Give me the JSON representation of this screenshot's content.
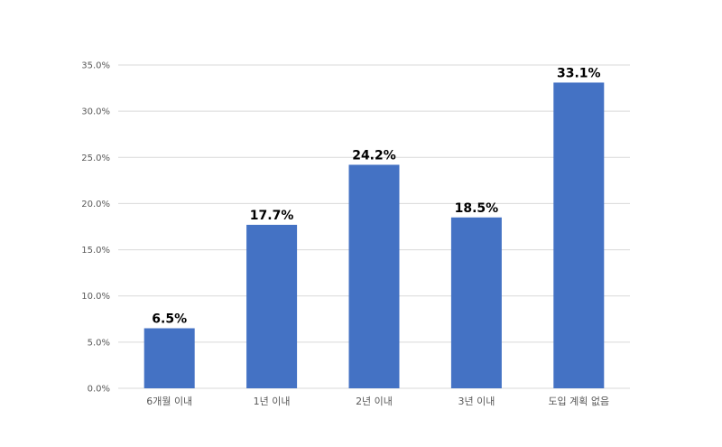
{
  "chart_data": {
    "type": "bar",
    "title": "",
    "xlabel": "",
    "ylabel": "",
    "categories": [
      "6개월 이내",
      "1년 이내",
      "2년 이내",
      "3년 이내",
      "도입 계획 없음"
    ],
    "values": [
      6.5,
      17.7,
      24.2,
      18.5,
      33.1
    ],
    "data_labels": [
      "6.5%",
      "17.7%",
      "24.2%",
      "18.5%",
      "33.1%"
    ],
    "ylim": [
      0,
      35
    ],
    "y_ticks": [
      0,
      5,
      10,
      15,
      20,
      25,
      30,
      35
    ],
    "y_tick_labels": [
      "0.0%",
      "5.0%",
      "10.0%",
      "15.0%",
      "20.0%",
      "25.0%",
      "30.0%",
      "35.0%"
    ],
    "grid": true,
    "legend": "none",
    "bar_color": "#4472c4"
  }
}
